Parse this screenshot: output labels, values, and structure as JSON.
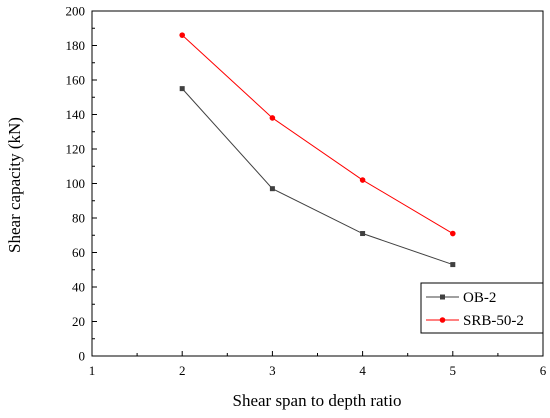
{
  "chart_data": {
    "type": "line",
    "title": "",
    "xlabel": "Shear span to depth ratio",
    "ylabel": "Shear capacity (kN)",
    "xlim": [
      1,
      6
    ],
    "ylim": [
      0,
      200
    ],
    "x_ticks": [
      "1",
      "2",
      "3",
      "4",
      "5",
      "6"
    ],
    "y_ticks": [
      "0",
      "20",
      "40",
      "60",
      "80",
      "100",
      "120",
      "140",
      "160",
      "180",
      "200"
    ],
    "x": [
      2,
      3,
      4,
      5
    ],
    "series": [
      {
        "name": "OB-2",
        "values": [
          155,
          97,
          71,
          53
        ],
        "color": "#404040",
        "marker": "square"
      },
      {
        "name": "SRB-50-2",
        "values": [
          186,
          138,
          102,
          71
        ],
        "color": "#ff0000",
        "marker": "circle"
      }
    ],
    "grid": false,
    "legend_position": "bottom-right"
  }
}
